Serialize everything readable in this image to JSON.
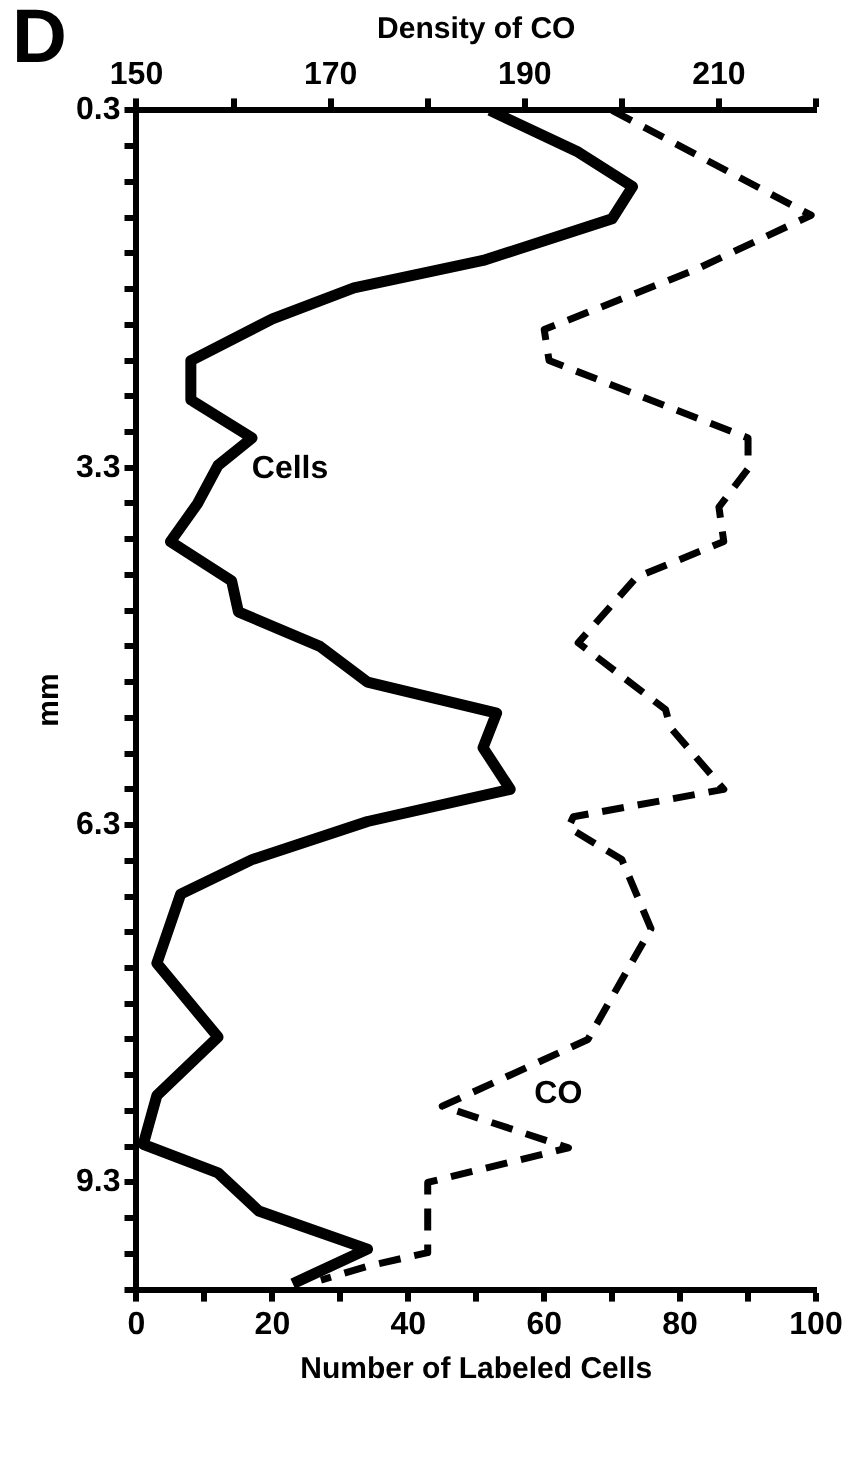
{
  "chart_data": {
    "type": "line",
    "title": "D",
    "xlabel": "Number of Labeled Cells",
    "x2label": "Density of CO",
    "ylabel": "mm",
    "xlim": [
      0,
      100
    ],
    "xticks": [
      0,
      {
        "value": 10,
        "label": null
      },
      20,
      {
        "value": 30,
        "label": null
      },
      40,
      {
        "value": 50,
        "label": null
      },
      60,
      {
        "value": 70,
        "label": null
      },
      80,
      {
        "value": 90,
        "label": null
      },
      100
    ],
    "x2lim": [
      150,
      220
    ],
    "x2ticks": [
      150,
      {
        "value": 160,
        "label": null
      },
      170,
      {
        "value": 180,
        "label": null
      },
      190,
      {
        "value": 200,
        "label": null
      },
      210,
      {
        "value": 220,
        "label": null
      }
    ],
    "ylim": [
      10.2,
      0.3
    ],
    "yticks": [
      0.3,
      {
        "value": 0.6,
        "label": null
      },
      {
        "value": 0.9,
        "label": null
      },
      {
        "value": 1.2,
        "label": null
      },
      {
        "value": 1.5,
        "label": null
      },
      {
        "value": 1.8,
        "label": null
      },
      {
        "value": 2.1,
        "label": null
      },
      {
        "value": 2.4,
        "label": null
      },
      {
        "value": 2.7,
        "label": null
      },
      {
        "value": 3.0,
        "label": null
      },
      3.3,
      {
        "value": 3.6,
        "label": null
      },
      {
        "value": 3.9,
        "label": null
      },
      {
        "value": 4.2,
        "label": null
      },
      {
        "value": 4.5,
        "label": null
      },
      {
        "value": 4.8,
        "label": null
      },
      {
        "value": 5.1,
        "label": null
      },
      {
        "value": 5.4,
        "label": null
      },
      {
        "value": 5.7,
        "label": null
      },
      {
        "value": 6.0,
        "label": null
      },
      6.3,
      {
        "value": 6.6,
        "label": null
      },
      {
        "value": 6.9,
        "label": null
      },
      {
        "value": 7.2,
        "label": null
      },
      {
        "value": 7.5,
        "label": null
      },
      {
        "value": 7.8,
        "label": null
      },
      {
        "value": 8.1,
        "label": null
      },
      {
        "value": 8.4,
        "label": null
      },
      {
        "value": 8.7,
        "label": null
      },
      {
        "value": 9.0,
        "label": null
      },
      9.3,
      {
        "value": 9.6,
        "label": null
      },
      {
        "value": 9.9,
        "label": null
      },
      {
        "value": 10.2,
        "label": null
      }
    ],
    "grid": false,
    "legend": false,
    "marker": "none",
    "series": [
      {
        "name": "Cells",
        "color": "#000000",
        "line_style": "solid",
        "x": [
          52,
          65,
          73,
          70,
          51,
          32,
          20,
          8,
          8,
          17,
          12,
          9,
          5,
          14,
          15,
          27,
          34,
          53,
          51,
          55,
          34,
          17,
          6.5,
          3,
          12,
          3,
          1,
          12,
          18,
          34,
          23
        ],
        "values": [
          0.3,
          0.65,
          0.94,
          1.21,
          1.56,
          1.79,
          2.05,
          2.4,
          2.73,
          3.05,
          3.28,
          3.6,
          3.92,
          4.25,
          4.51,
          4.8,
          5.1,
          5.36,
          5.65,
          6.0,
          6.27,
          6.59,
          6.88,
          7.46,
          8.08,
          8.57,
          8.98,
          9.22,
          9.54,
          9.86,
          10.15
        ]
      },
      {
        "name": "CO",
        "color": "#000000",
        "line_style": "dashed",
        "axis": "x2",
        "x": [
          199,
          219.5,
          207.5,
          192,
          192.5,
          213,
          213,
          210,
          210.5,
          201.5,
          195.5,
          204.5,
          205,
          210.5,
          195,
          194.5,
          200,
          203,
          196.5,
          181.5,
          194.5,
          180,
          180,
          174,
          169
        ],
        "values": [
          0.3,
          1.18,
          1.64,
          2.14,
          2.4,
          3.05,
          3.31,
          3.63,
          3.92,
          4.22,
          4.77,
          5.33,
          5.48,
          6.0,
          6.23,
          6.32,
          6.59,
          7.17,
          8.1,
          8.66,
          9.01,
          9.3,
          9.89,
          10.0,
          10.12
        ]
      }
    ]
  }
}
